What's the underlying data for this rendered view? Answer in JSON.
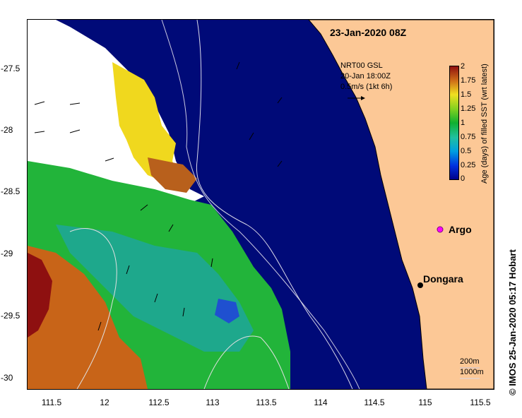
{
  "title": "23-Jan-2020 08Z",
  "vector_legend": {
    "line1": "NRT00 GSL",
    "line2": "20-Jan 18:00Z",
    "line3": "0.5m/s (1kt 6h)"
  },
  "colorbar": {
    "title": "Age (days) of filled SST (wrt latest)",
    "labels": [
      "2",
      "1.75",
      "1.5",
      "1.25",
      "1",
      "0.75",
      "0.5",
      "0.25",
      "0"
    ]
  },
  "axes": {
    "y_ticks": [
      "-27.5",
      "-28",
      "-28.5",
      "-29",
      "-29.5",
      "-30"
    ],
    "x_ticks": [
      "111.5",
      "12",
      "112.5",
      "113",
      "113.5",
      "114",
      "114.5",
      "115",
      "115.5"
    ]
  },
  "places": {
    "argo": "Argo",
    "dongara": "Dongara"
  },
  "depth_legend": {
    "line1": "200m",
    "line2": "1000m"
  },
  "credit": "© IMOS 25-Jan-2020 05:17 Hobart",
  "colors": {
    "ocean": "#000a78",
    "land": "#fcc896",
    "argo": "#ff00ff"
  }
}
